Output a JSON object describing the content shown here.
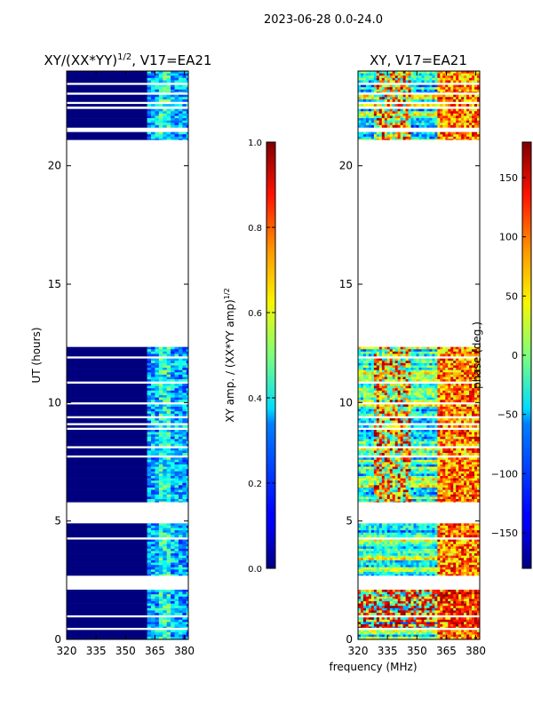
{
  "figure": {
    "suptitle": "2023-06-28 0.0-24.0",
    "xlabel_shared": "frequency (MHz)"
  },
  "chart_data": [
    {
      "type": "heatmap",
      "title": "XY/(XX*YY)^{1/2}, V17=EA21",
      "title_main": "XY/(XX*YY)",
      "title_sup": "1/2",
      "title_tail": ", V17=EA21",
      "xlabel": "",
      "ylabel": "UT (hours)",
      "xlim": [
        320,
        382
      ],
      "ylim": [
        0,
        24
      ],
      "xticks": [
        320,
        335,
        350,
        365,
        380
      ],
      "yticks": [
        0,
        5,
        10,
        15,
        20
      ],
      "data_bands_ut": [
        [
          0.0,
          0.4
        ],
        [
          0.5,
          2.1
        ],
        [
          2.7,
          4.9
        ],
        [
          5.8,
          10.8
        ],
        [
          10.9,
          12.35
        ],
        [
          21.1,
          22.4
        ],
        [
          22.5,
          23.0
        ],
        [
          23.1,
          24.0
        ]
      ],
      "feature_freq_range_mhz": [
        361,
        380
      ],
      "colorbar": {
        "label": "XY amp. / (XX*YY amp)^{1/2}",
        "label_main": "XY amp. / (XX*YY amp)",
        "label_sup": "1/2",
        "range": [
          0.0,
          1.0
        ],
        "ticks": [
          "0.0",
          "0.2",
          "0.4",
          "0.6",
          "0.8",
          "1.0"
        ]
      }
    },
    {
      "type": "heatmap",
      "title": "XY, V17=EA21",
      "xlabel": "frequency (MHz)",
      "ylabel": "",
      "xlim": [
        320,
        382
      ],
      "ylim": [
        0,
        24
      ],
      "xticks": [
        320,
        335,
        350,
        365,
        380
      ],
      "yticks": [
        0,
        5,
        10,
        15,
        20
      ],
      "data_bands_ut": [
        [
          0.0,
          0.4
        ],
        [
          0.5,
          2.1
        ],
        [
          2.7,
          4.9
        ],
        [
          5.8,
          10.8
        ],
        [
          10.9,
          12.35
        ],
        [
          21.1,
          22.4
        ],
        [
          22.5,
          23.0
        ],
        [
          23.1,
          24.0
        ]
      ],
      "colorbar": {
        "label": "phase (deg.)",
        "range": [
          -180,
          180
        ],
        "ticks": [
          "150",
          "100",
          "50",
          "0",
          "−50",
          "−100",
          "−150"
        ],
        "tick_values": [
          150,
          100,
          50,
          0,
          -50,
          -100,
          -150
        ]
      }
    }
  ]
}
